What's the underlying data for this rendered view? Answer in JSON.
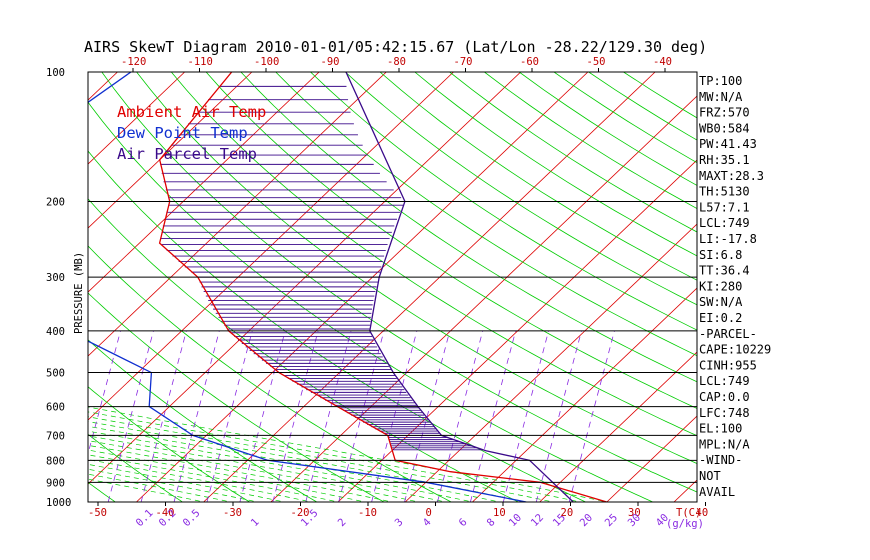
{
  "title": "AIRS SkewT Diagram 2010-01-01/05:42:15.67 (Lat/Lon -28.22/129.30 deg)",
  "colors": {
    "ambient": "#e00000",
    "dewpoint": "#1030d0",
    "parcel": "#3a0a8a",
    "isotherm": "#dd0000",
    "dry_adiabat": "#00cc00",
    "moist_adiabat": "#00cc00",
    "mixing_ratio": "#8a2be2",
    "axis": "#000000"
  },
  "legend": [
    {
      "label": "Ambient Air Temp",
      "color": "#e00000"
    },
    {
      "label": "Dew Point Temp",
      "color": "#1030d0"
    },
    {
      "label": "Air Parcel Temp",
      "color": "#3a0a8a"
    }
  ],
  "stats": [
    "TP:100",
    "MW:N/A",
    "FRZ:570",
    "WB0:584",
    "PW:41.43",
    "RH:35.1",
    "MAXT:28.3",
    "TH:5130",
    "L57:7.1",
    "LCL:749",
    "LI:-17.8",
    "SI:6.8",
    "TT:36.4",
    "KI:280",
    "SW:N/A",
    "EI:0.2",
    "-PARCEL-",
    "CAPE:10229",
    "CINH:955",
    "LCL:749",
    "CAP:0.0",
    "LFC:748",
    "EL:100",
    "MPL:N/A",
    "-WIND-",
    "NOT",
    "AVAIL"
  ],
  "chart_data": {
    "type": "line",
    "title": "AIRS SkewT Diagram 2010-01-01/05:42:15.67 (Lat/Lon -28.22/129.30 deg)",
    "ylabel": "PRESSURE (MB)",
    "xlabel_bottom": "T(C)",
    "mixing_ratio_label": "(g/kg)",
    "y_scale": "log",
    "ylim": [
      1000,
      100
    ],
    "pressure_ticks": [
      100,
      200,
      300,
      400,
      500,
      600,
      700,
      800,
      900,
      1000
    ],
    "top_temp_ticks": [
      -120,
      -110,
      -100,
      -90,
      -80,
      -70,
      -60,
      -50,
      -40
    ],
    "bottom_temp_ticks": [
      -50,
      -40,
      -30,
      -20,
      -10,
      0,
      10,
      20,
      30,
      40
    ],
    "mixing_ratio_ticks": [
      "0.1",
      "0.2",
      "0.5",
      "1",
      "1.5",
      "2",
      "3",
      "4",
      "6",
      "8",
      "10",
      "12",
      "15",
      "20",
      "25",
      "30",
      "40"
    ],
    "series": [
      {
        "name": "Ambient Air Temp",
        "points": [
          [
            100,
            -83
          ],
          [
            160,
            -80
          ],
          [
            200,
            -72
          ],
          [
            250,
            -67
          ],
          [
            300,
            -56
          ],
          [
            400,
            -43
          ],
          [
            500,
            -29
          ],
          [
            600,
            -15
          ],
          [
            700,
            -3
          ],
          [
            800,
            2
          ],
          [
            850,
            12
          ],
          [
            900,
            27
          ],
          [
            1000,
            40
          ]
        ]
      },
      {
        "name": "Dew Point Temp",
        "points": [
          [
            100,
            -98
          ],
          [
            200,
            -105
          ],
          [
            250,
            -101
          ],
          [
            300,
            -90
          ],
          [
            400,
            -67
          ],
          [
            500,
            -48
          ],
          [
            600,
            -43
          ],
          [
            700,
            -32
          ],
          [
            800,
            -17
          ],
          [
            900,
            10
          ],
          [
            1000,
            28
          ]
        ]
      },
      {
        "name": "Air Parcel Temp",
        "points": [
          [
            100,
            -66
          ],
          [
            200,
            -37
          ],
          [
            300,
            -29
          ],
          [
            400,
            -22
          ],
          [
            500,
            -12
          ],
          [
            600,
            -3
          ],
          [
            700,
            5
          ],
          [
            760,
            14
          ],
          [
            800,
            22
          ],
          [
            1000,
            35
          ]
        ]
      }
    ]
  }
}
